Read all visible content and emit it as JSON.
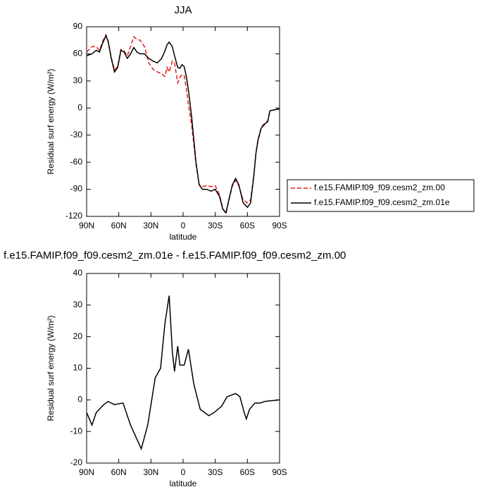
{
  "chart_data": [
    {
      "type": "line",
      "title": "JJA",
      "xlabel": "latitude",
      "ylabel": "Residual surf energy (W/m²)",
      "xlim": [
        90,
        -90
      ],
      "ylim": [
        -120,
        90
      ],
      "xticks": [
        {
          "value": 90,
          "label": "90N"
        },
        {
          "value": 60,
          "label": "60N"
        },
        {
          "value": 30,
          "label": "30N"
        },
        0,
        {
          "value": -30,
          "label": "30S"
        },
        {
          "value": -60,
          "label": "60S"
        },
        {
          "value": -90,
          "label": "90S"
        }
      ],
      "yticks": [
        -120,
        -90,
        -60,
        -30,
        0,
        30,
        60,
        90
      ],
      "legend": "right",
      "x": [
        90,
        85,
        81,
        78,
        75,
        72,
        70,
        67,
        64,
        61,
        58,
        55,
        52,
        49,
        46,
        43,
        40,
        36,
        32,
        28,
        24,
        20,
        17,
        15,
        13,
        10,
        8,
        5,
        3,
        1,
        -1,
        -3,
        -5,
        -8,
        -10,
        -12,
        -15,
        -18,
        -22,
        -26,
        -30,
        -34,
        -37,
        -40,
        -43,
        -46,
        -49,
        -52,
        -56,
        -60,
        -63,
        -66,
        -68,
        -70,
        -73,
        -76,
        -79,
        -81,
        -85,
        -90
      ],
      "series": [
        {
          "name": "f.e15.FAMIP.f09_f09.cesm2_zm.00",
          "color": "#e41a1c",
          "linestyle": "dashed",
          "values": [
            62,
            68,
            68,
            64,
            74,
            81,
            75,
            56,
            42,
            46,
            65,
            63,
            58,
            68,
            79,
            76,
            75,
            68,
            50,
            43,
            40,
            38,
            35,
            45,
            40,
            52,
            50,
            28,
            34,
            37,
            36,
            22,
            4,
            -19,
            -40,
            -62,
            -85,
            -87,
            -86,
            -87,
            -86,
            -96,
            -111,
            -117,
            -101,
            -86,
            -80,
            -86,
            -102,
            -105,
            -102,
            -74,
            -49,
            -34,
            -21,
            -17,
            -14,
            -3,
            -2,
            -1
          ]
        },
        {
          "name": "f.e15.FAMIP.f09_f09.cesm2_zm.01e",
          "color": "#000000",
          "linestyle": "solid",
          "values": [
            58,
            60,
            64,
            62,
            72,
            80,
            74,
            55,
            40,
            45,
            64,
            62,
            55,
            60,
            67,
            62,
            60,
            60,
            55,
            52,
            50,
            55,
            63,
            70,
            73,
            68,
            58,
            45,
            44,
            48,
            46,
            35,
            20,
            -10,
            -35,
            -60,
            -85,
            -90,
            -90,
            -92,
            -90,
            -98,
            -112,
            -116,
            -100,
            -85,
            -78,
            -85,
            -105,
            -110,
            -105,
            -75,
            -50,
            -35,
            -22,
            -18,
            -15,
            -3,
            -2,
            -1
          ]
        }
      ]
    },
    {
      "type": "line",
      "title": "f.e15.FAMIP.f09_f09.cesm2_zm.01e - f.e15.FAMIP.f09_f09.cesm2_zm.00",
      "xlabel": "latitude",
      "ylabel": "Residual surf energy (W/m²)",
      "xlim": [
        90,
        -90
      ],
      "ylim": [
        -20,
        40
      ],
      "xticks": [
        {
          "value": 90,
          "label": "90N"
        },
        {
          "value": 60,
          "label": "60N"
        },
        {
          "value": 30,
          "label": "30N"
        },
        0,
        {
          "value": -30,
          "label": "30S"
        },
        {
          "value": -60,
          "label": "60S"
        },
        {
          "value": -90,
          "label": "90S"
        }
      ],
      "yticks": [
        -20,
        -10,
        0,
        10,
        20,
        30,
        40
      ],
      "x": [
        90,
        85,
        81,
        74,
        70,
        64,
        56,
        49,
        39,
        33,
        26,
        21,
        17,
        13,
        10,
        8,
        5,
        3,
        -1,
        -5,
        -10,
        -16,
        -24,
        -29,
        -36,
        -41,
        -49,
        -53,
        -57,
        -59,
        -62,
        -67,
        -72,
        -76,
        -90
      ],
      "series": [
        {
          "color": "#000000",
          "linestyle": "solid",
          "values": [
            -4,
            -8,
            -4,
            -1.5,
            -0.5,
            -1.5,
            -1,
            -8,
            -15.5,
            -8,
            7,
            10,
            24,
            33,
            15,
            9,
            17,
            11,
            11,
            16,
            5,
            -3,
            -5,
            -4,
            -2,
            1,
            2,
            1,
            -4,
            -6,
            -3,
            -1,
            -1,
            -0.5,
            0
          ]
        }
      ]
    }
  ]
}
